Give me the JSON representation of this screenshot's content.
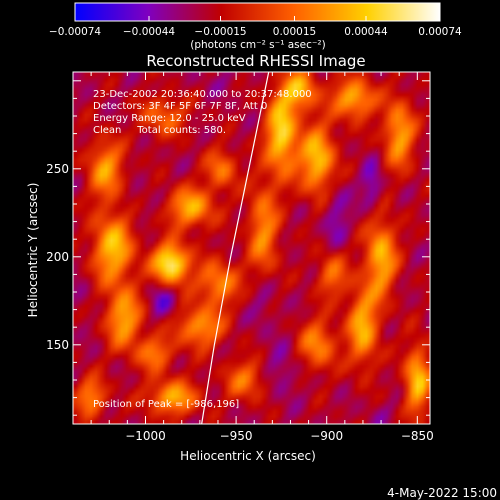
{
  "chart_data": {
    "type": "heatmap",
    "title": "Reconstructed RHESSI Image",
    "xlabel": "Heliocentric X (arcsec)",
    "ylabel": "Heliocentric Y (arcsec)",
    "xlim": [
      -1040,
      -843
    ],
    "ylim": [
      105,
      305
    ],
    "x_ticks": [
      -1000,
      -950,
      -900,
      -850
    ],
    "x_tick_labels": [
      "−1000",
      "−950",
      "−900",
      "−850"
    ],
    "y_ticks": [
      150,
      200,
      250
    ],
    "y_tick_labels": [
      "150",
      "200",
      "250"
    ],
    "colorbar": {
      "range": [
        -0.00074,
        0.00074
      ],
      "ticks": [
        -0.00074,
        -0.00044,
        -0.00015,
        0.00015,
        0.00044,
        0.00074
      ],
      "tick_labels": [
        "−0.00074",
        "−0.00044",
        "−0.00015",
        "0.00015",
        "0.00044",
        "0.00074"
      ],
      "units_label": "(photons cm⁻² s⁻¹ asec⁻²)",
      "colors": [
        "#0000ff",
        "#7f00c0",
        "#c00000",
        "#ff6000",
        "#ffd000",
        "#ffffff"
      ]
    },
    "annotations": [
      "23-Dec-2002 20:36:40.000 to 20:37:48.000",
      "Detectors: 3F 4F 5F 6F 7F 8F, Att 0",
      "Energy Range: 12.0 - 25.0 keV",
      "Clean     Total counts: 580."
    ],
    "peak_label": "Position of Peak = [-986,196]",
    "peak": [
      -986,
      196
    ],
    "limb_curve": [
      [
        -969,
        105
      ],
      [
        -962,
        150
      ],
      [
        -953,
        200
      ],
      [
        -943,
        250
      ],
      [
        -932,
        305
      ]
    ],
    "emission_sources": [
      {
        "x": -986,
        "y": 196,
        "intensity": 0.00074,
        "sx": 7,
        "sy": 8
      },
      {
        "x": -1018,
        "y": 205,
        "intensity": 0.00048,
        "sx": 8,
        "sy": 14
      },
      {
        "x": -1012,
        "y": 165,
        "intensity": 0.0004,
        "sx": 7,
        "sy": 12
      },
      {
        "x": -1022,
        "y": 250,
        "intensity": 0.00035,
        "sx": 7,
        "sy": 12
      },
      {
        "x": -975,
        "y": 228,
        "intensity": 0.00042,
        "sx": 9,
        "sy": 8
      },
      {
        "x": -960,
        "y": 185,
        "intensity": 0.00032,
        "sx": 8,
        "sy": 9
      },
      {
        "x": -970,
        "y": 160,
        "intensity": 0.00036,
        "sx": 9,
        "sy": 8
      },
      {
        "x": -985,
        "y": 120,
        "intensity": 0.0004,
        "sx": 10,
        "sy": 7
      },
      {
        "x": -945,
        "y": 130,
        "intensity": 0.00022,
        "sx": 8,
        "sy": 8
      },
      {
        "x": -925,
        "y": 270,
        "intensity": 0.00058,
        "sx": 6,
        "sy": 16
      },
      {
        "x": -905,
        "y": 255,
        "intensity": 0.0005,
        "sx": 7,
        "sy": 14
      },
      {
        "x": -915,
        "y": 295,
        "intensity": 0.0004,
        "sx": 7,
        "sy": 8
      },
      {
        "x": -885,
        "y": 290,
        "intensity": 0.00045,
        "sx": 8,
        "sy": 8
      },
      {
        "x": -860,
        "y": 270,
        "intensity": 0.0004,
        "sx": 6,
        "sy": 14
      },
      {
        "x": -870,
        "y": 200,
        "intensity": 0.00045,
        "sx": 6,
        "sy": 16
      },
      {
        "x": -880,
        "y": 160,
        "intensity": 0.00042,
        "sx": 6,
        "sy": 16
      },
      {
        "x": -850,
        "y": 130,
        "intensity": 0.00048,
        "sx": 5,
        "sy": 14
      },
      {
        "x": -905,
        "y": 150,
        "intensity": 0.0003,
        "sx": 7,
        "sy": 10
      },
      {
        "x": -897,
        "y": 190,
        "intensity": 0.00022,
        "sx": 6,
        "sy": 9
      },
      {
        "x": -935,
        "y": 215,
        "intensity": 0.0003,
        "sx": 6,
        "sy": 20
      },
      {
        "x": -1030,
        "y": 120,
        "intensity": 0.0003,
        "sx": 6,
        "sy": 8
      },
      {
        "x": -958,
        "y": 250,
        "intensity": 0.00025,
        "sx": 6,
        "sy": 8
      },
      {
        "x": -995,
        "y": 145,
        "intensity": 0.00025,
        "sx": 7,
        "sy": 7
      },
      {
        "x": -990,
        "y": 280,
        "intensity": 0.0002,
        "sx": 9,
        "sy": 8
      },
      {
        "x": -990,
        "y": 175,
        "intensity": -0.0005,
        "sx": 5,
        "sy": 7
      },
      {
        "x": -935,
        "y": 175,
        "intensity": -0.0004,
        "sx": 5,
        "sy": 12
      },
      {
        "x": -895,
        "y": 225,
        "intensity": -0.00045,
        "sx": 5,
        "sy": 14
      },
      {
        "x": -875,
        "y": 240,
        "intensity": -0.0005,
        "sx": 4,
        "sy": 10
      },
      {
        "x": -925,
        "y": 135,
        "intensity": -0.00042,
        "sx": 6,
        "sy": 10
      },
      {
        "x": -1005,
        "y": 230,
        "intensity": -0.0003,
        "sx": 6,
        "sy": 8
      },
      {
        "x": -960,
        "y": 300,
        "intensity": -0.0003,
        "sx": 8,
        "sy": 6
      },
      {
        "x": -1035,
        "y": 175,
        "intensity": -0.0003,
        "sx": 5,
        "sy": 10
      },
      {
        "x": -870,
        "y": 110,
        "intensity": -0.0003,
        "sx": 6,
        "sy": 6
      }
    ]
  },
  "footer": {
    "timestamp": "4-May-2022 15:00"
  }
}
